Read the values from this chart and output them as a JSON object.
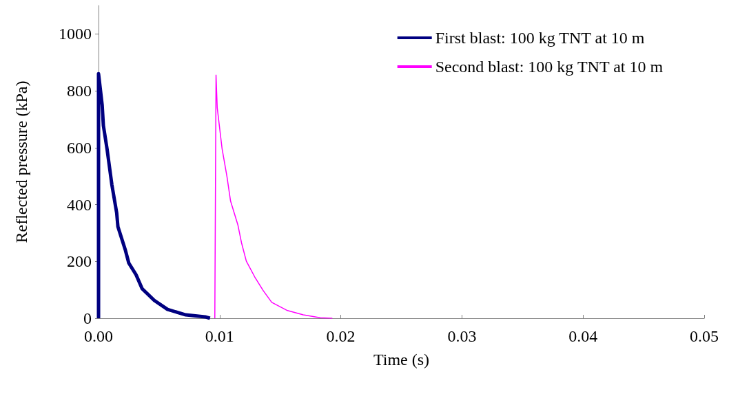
{
  "chart_data": {
    "type": "line",
    "xlabel": "Time (s)",
    "ylabel": "Reflected pressure (kPa)",
    "xlim": [
      0,
      0.05
    ],
    "xticks": [
      {
        "value": 0,
        "label": "0.00"
      },
      {
        "value": 0.01,
        "label": "0.01"
      },
      {
        "value": 0.02,
        "label": "0.02"
      },
      {
        "value": 0.03,
        "label": "0.03"
      },
      {
        "value": 0.04,
        "label": "0.04"
      },
      {
        "value": 0.05,
        "label": "0.05"
      }
    ],
    "ylim": [
      0,
      1100
    ],
    "yticks": [
      0,
      200,
      400,
      600,
      800,
      1000
    ],
    "grid": false,
    "legend": "top right",
    "marker": "none",
    "line_style": "solid",
    "series": [
      {
        "name": "First blast: 100 kg TNT at 10 m",
        "color": "#000080",
        "x": [
          0,
          0,
          0.0003,
          0.0004,
          0.0007,
          0.0011,
          0.0015,
          0.0016,
          0.0022,
          0.0025,
          0.0031,
          0.0036,
          0.0046,
          0.0057,
          0.0072,
          0.0088,
          0.0092
        ],
        "values": [
          0,
          860,
          750,
          678,
          596,
          470,
          370,
          322,
          242,
          194,
          153,
          104,
          63,
          31,
          12,
          5,
          0
        ]
      },
      {
        "name": "Second blast: 100 kg TNT at 10 m",
        "color": "#ff00ff",
        "x": [
          0.0096,
          0.0097,
          0.0098,
          0.0102,
          0.0106,
          0.0109,
          0.0115,
          0.0118,
          0.0122,
          0.0129,
          0.0136,
          0.0143,
          0.0156,
          0.0169,
          0.0183,
          0.0193
        ],
        "values": [
          0,
          855,
          740,
          596,
          499,
          412,
          329,
          266,
          201,
          145,
          97,
          56,
          27,
          12,
          2,
          0
        ]
      }
    ]
  }
}
